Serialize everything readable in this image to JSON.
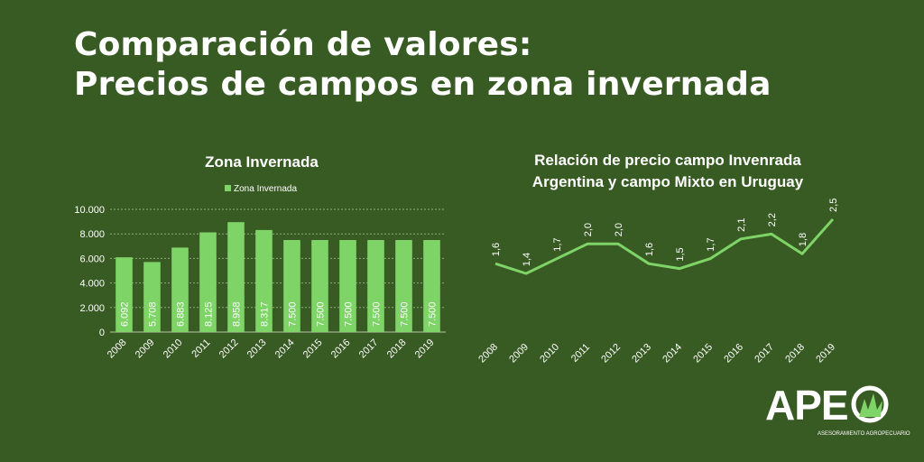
{
  "header": {
    "title_line1": "Comparación de valores:",
    "title_line2": "Precios de campos en zona invernada"
  },
  "colors": {
    "background": "#385a23",
    "bar": "#7fd468",
    "line": "#7fd468",
    "text": "#ffffff"
  },
  "chart_data": [
    {
      "type": "bar",
      "title": "Zona Invernada",
      "legend": "Zona Invernada",
      "legend_position": "top",
      "categories": [
        "2008",
        "2009",
        "2010",
        "2011",
        "2012",
        "2013",
        "2014",
        "2015",
        "2016",
        "2017",
        "2018",
        "2019"
      ],
      "series": [
        {
          "name": "Zona Invernada",
          "values": [
            6092,
            5708,
            6883,
            8125,
            8958,
            8317,
            7500,
            7500,
            7500,
            7500,
            7500,
            7500
          ],
          "labels": [
            "6.092",
            "5.708",
            "6.883",
            "8.125",
            "8.958",
            "8.317",
            "7.500",
            "7.500",
            "7.500",
            "7.500",
            "7.500",
            "7.500"
          ]
        }
      ],
      "yticks": [
        "0",
        "2.000",
        "4.000",
        "6.000",
        "8.000",
        "10.000"
      ],
      "ytick_values": [
        0,
        2000,
        4000,
        6000,
        8000,
        10000
      ],
      "ylim": [
        0,
        10000
      ],
      "grid": true
    },
    {
      "type": "line",
      "title_line1": "Relación de precio campo Invenrada",
      "title_line2": "Argentina y campo Mixto en Uruguay",
      "categories": [
        "2008",
        "2009",
        "2010",
        "2011",
        "2012",
        "2013",
        "2014",
        "2015",
        "2016",
        "2017",
        "2018",
        "2019"
      ],
      "series": [
        {
          "values": [
            1.6,
            1.4,
            1.7,
            2.0,
            2.0,
            1.6,
            1.5,
            1.7,
            2.1,
            2.2,
            1.8,
            2.5
          ],
          "labels": [
            "1,6",
            "1,4",
            "1,7",
            "2,0",
            "2,0",
            "1,6",
            "1,5",
            "1,7",
            "2,1",
            "2,2",
            "1,8",
            "2,5"
          ]
        }
      ],
      "grid": false
    }
  ],
  "logo": {
    "text": "APE",
    "subtitle": "ASESORAMIENTO AGROPECUARIO"
  }
}
